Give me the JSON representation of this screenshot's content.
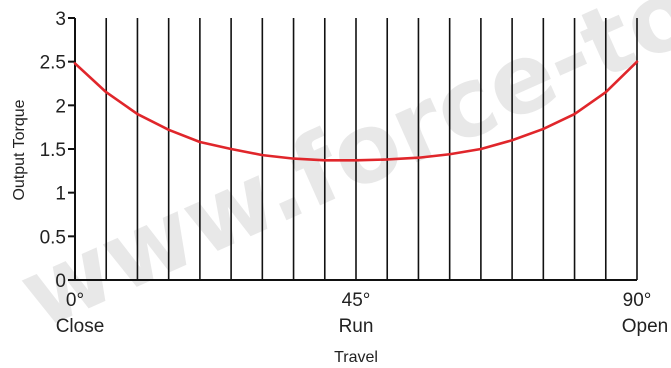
{
  "chart_data": {
    "type": "line",
    "xlabel": "Travel",
    "ylabel": "Output Torque",
    "xlim": [
      0,
      90
    ],
    "ylim": [
      0,
      3
    ],
    "y_ticks": [
      "0",
      "0.5",
      "1",
      "1.5",
      "2",
      "2.5",
      "3"
    ],
    "x_ticks": [
      {
        "value": 0,
        "label": "0°",
        "sublabel": "Close"
      },
      {
        "value": 45,
        "label": "45°",
        "sublabel": "Run"
      },
      {
        "value": 90,
        "label": "90°",
        "sublabel": "Open"
      }
    ],
    "vertical_grid_count": 18,
    "series": [
      {
        "color": "#e0262b",
        "x": [
          0,
          5,
          10,
          15,
          20,
          25,
          30,
          35,
          40,
          45,
          50,
          55,
          60,
          65,
          70,
          75,
          80,
          85,
          90
        ],
        "y": [
          2.48,
          2.15,
          1.9,
          1.72,
          1.58,
          1.5,
          1.43,
          1.39,
          1.37,
          1.37,
          1.38,
          1.4,
          1.44,
          1.5,
          1.6,
          1.73,
          1.9,
          2.15,
          2.5
        ]
      }
    ],
    "watermark": "www.force-tor"
  }
}
